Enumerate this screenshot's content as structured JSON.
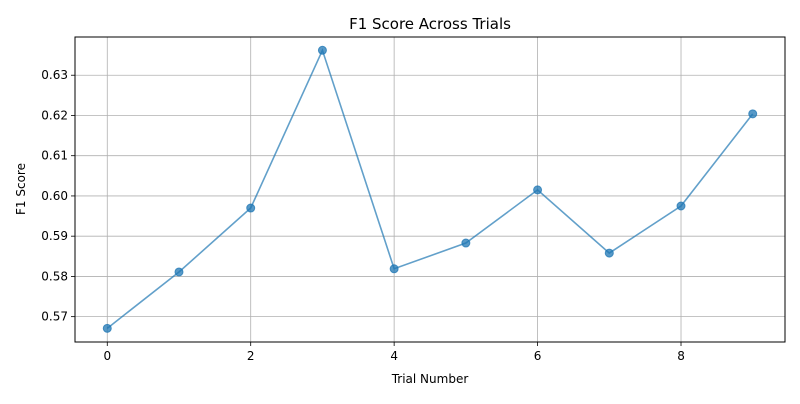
{
  "colors": {
    "series": "#1f77b4",
    "grid": "#b0b0b0",
    "axis": "#000000",
    "background": "#ffffff"
  },
  "chart_data": {
    "type": "line",
    "title": "F1 Score Across Trials",
    "xlabel": "Trial Number",
    "ylabel": "F1 Score",
    "grid": true,
    "markers": "circle",
    "xlim": [
      -0.45,
      9.45
    ],
    "ylim": [
      0.5637,
      0.6395
    ],
    "x_ticks": [
      0,
      2,
      4,
      6,
      8
    ],
    "y_ticks": [
      0.57,
      0.58,
      0.59,
      0.6,
      0.61,
      0.62,
      0.63
    ],
    "x_tick_labels": [
      "0",
      "2",
      "4",
      "6",
      "8"
    ],
    "y_tick_labels": [
      "0.57",
      "0.58",
      "0.59",
      "0.60",
      "0.61",
      "0.62",
      "0.63"
    ],
    "series": [
      {
        "x": [
          0,
          1,
          2,
          3,
          4,
          5,
          6,
          7,
          8,
          9
        ],
        "values": [
          0.5671,
          0.5811,
          0.597,
          0.6362,
          0.5819,
          0.5883,
          0.6015,
          0.5858,
          0.5975,
          0.6204
        ]
      }
    ]
  }
}
